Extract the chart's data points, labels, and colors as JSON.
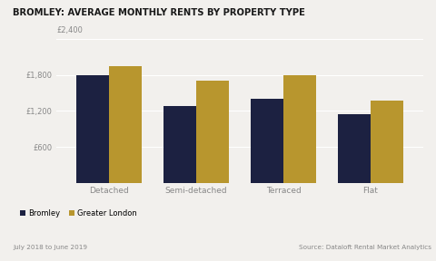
{
  "title": "BROMLEY: AVERAGE MONTHLY RENTS BY PROPERTY TYPE",
  "categories": [
    "Detached",
    "Semi-detached",
    "Terraced",
    "Flat"
  ],
  "bromley": [
    1800,
    1280,
    1400,
    1150
  ],
  "greater_london": [
    1950,
    1700,
    1800,
    1380
  ],
  "bromley_color": "#1c2141",
  "greater_london_color": "#b8962e",
  "ylim": [
    0,
    2400
  ],
  "yticks": [
    0,
    600,
    1200,
    1800,
    2400
  ],
  "ytick_labels": [
    "",
    "£600",
    "£1,200",
    "£1,800",
    ""
  ],
  "top_ytick_label": "£2,400",
  "legend_bromley": "Bromley",
  "legend_gl": "Greater London",
  "footnote_left": "July 2018 to June 2019",
  "footnote_right": "Source: Dataloft Rental Market Analytics",
  "background_color": "#f2f0ed",
  "bar_width": 0.38
}
